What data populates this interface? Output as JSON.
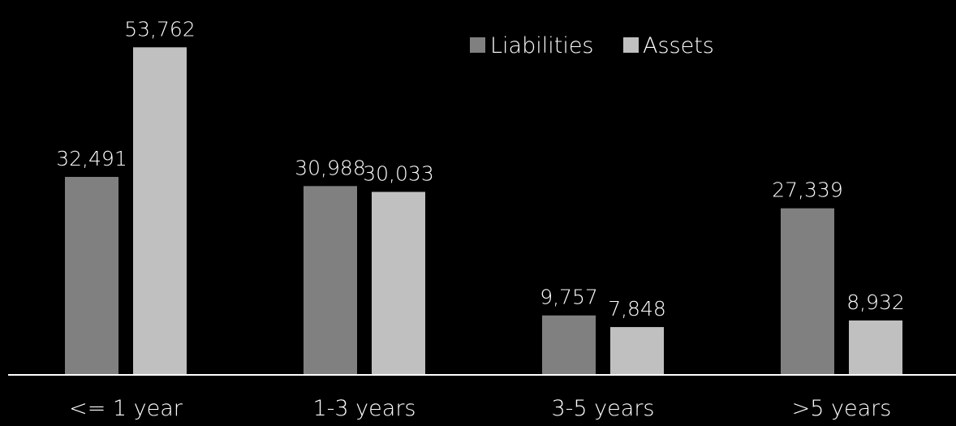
{
  "chart_data": {
    "type": "bar",
    "categories": [
      "<= 1 year",
      "1-3 years",
      "3-5 years",
      ">5 years"
    ],
    "series": [
      {
        "name": "Liabilities",
        "values": [
          32491,
          30988,
          9757,
          27339
        ],
        "labels": [
          "32,491",
          "30,988",
          "9,757",
          "27,339"
        ],
        "color": "#808080"
      },
      {
        "name": "Assets",
        "values": [
          53762,
          30033,
          7848,
          8932
        ],
        "labels": [
          "53,762",
          "30,033",
          "7,848",
          "8,932"
        ],
        "color": "#c0c0c0"
      }
    ],
    "ylim": [
      0,
      55000
    ],
    "grid": false,
    "legend": "top-right",
    "background": "#000000",
    "axis_color": "#ffffff",
    "text_color": "#ffffff"
  }
}
